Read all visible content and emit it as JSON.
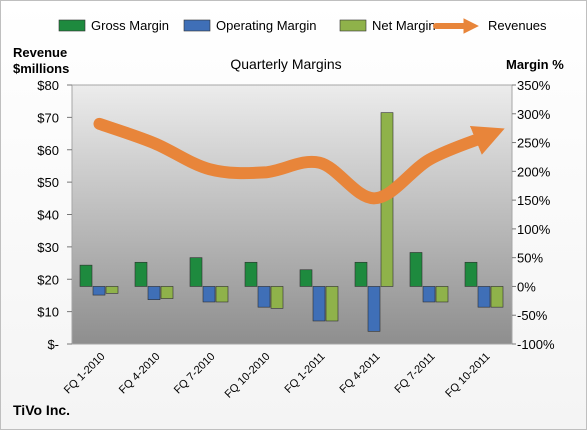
{
  "chart_data": {
    "type": "bar+line",
    "title": "Quarterly Margins",
    "company": "TiVo Inc.",
    "left_axis": {
      "label_line1": "Revenue",
      "label_line2": "$millions",
      "range": [
        0,
        80
      ],
      "ticks": [
        "$-",
        "$10",
        "$20",
        "$30",
        "$40",
        "$50",
        "$60",
        "$70",
        "$80"
      ]
    },
    "right_axis": {
      "label": "Margin %",
      "range": [
        -100,
        350
      ],
      "ticks": [
        "-100%",
        "-50%",
        "0%",
        "50%",
        "100%",
        "150%",
        "200%",
        "250%",
        "300%",
        "350%"
      ]
    },
    "categories": [
      "FQ 1-2010",
      "FQ 4-2010",
      "FQ 7-2010",
      "FQ 10-2010",
      "FQ 1-2011",
      "FQ 4-2011",
      "FQ 7-2011",
      "FQ 10-2011"
    ],
    "series": [
      {
        "name": "Gross Margin",
        "axis": "right",
        "kind": "bar",
        "color": "#1e8a3e",
        "values": [
          37,
          42,
          50,
          42,
          29,
          42,
          59,
          42
        ]
      },
      {
        "name": "Operating Margin",
        "axis": "right",
        "kind": "bar",
        "color": "#3f6fb7",
        "values": [
          -15,
          -23,
          -27,
          -36,
          -60,
          -78,
          -27,
          -36
        ]
      },
      {
        "name": "Net Margin",
        "axis": "right",
        "kind": "bar",
        "color": "#8fb24a",
        "values": [
          -12,
          -21,
          -27,
          -38,
          -60,
          302,
          -27,
          -36
        ]
      },
      {
        "name": "Revenues",
        "axis": "left",
        "kind": "line",
        "color": "#e8853a",
        "values": [
          68,
          62,
          54,
          53,
          56,
          45,
          57,
          64
        ]
      }
    ],
    "legend_position": "top",
    "grid": false
  }
}
